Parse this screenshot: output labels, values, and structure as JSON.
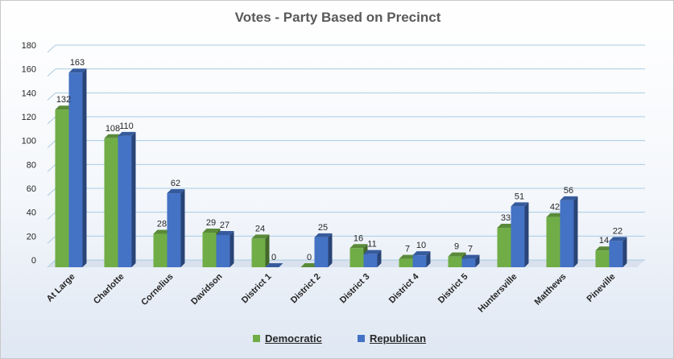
{
  "chart_data": {
    "type": "bar",
    "title": "Votes - Party Based on Precinct",
    "categories": [
      "At Large",
      "Charlotte",
      "Cornelius",
      "Davidson",
      "District 1",
      "District 2",
      "District 3",
      "District 4",
      "District 5",
      "Huntersville",
      "Matthews",
      "Pineville"
    ],
    "series": [
      {
        "name": "Democratic",
        "color": "#70ad47",
        "values": [
          132,
          108,
          28,
          29,
          24,
          0,
          16,
          7,
          9,
          33,
          42,
          14
        ]
      },
      {
        "name": "Republican",
        "color": "#4472c4",
        "values": [
          163,
          110,
          62,
          27,
          0,
          25,
          11,
          10,
          7,
          51,
          56,
          22
        ]
      }
    ],
    "ylim": [
      0,
      180
    ],
    "yticks": [
      0,
      20,
      40,
      60,
      80,
      100,
      120,
      140,
      160,
      180
    ],
    "grid": true,
    "legend_position": "bottom"
  }
}
